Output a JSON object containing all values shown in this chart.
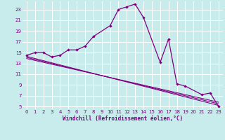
{
  "background_color": "#c8ecec",
  "grid_color": "#ffffff",
  "line_color": "#800080",
  "xlabel": "Windchill (Refroidissement éolien,°C)",
  "xlim": [
    -0.5,
    23.5
  ],
  "ylim": [
    4.5,
    24.5
  ],
  "xticks": [
    0,
    1,
    2,
    3,
    4,
    5,
    6,
    7,
    8,
    9,
    10,
    11,
    12,
    13,
    14,
    15,
    16,
    17,
    18,
    19,
    20,
    21,
    22,
    23
  ],
  "yticks": [
    5,
    7,
    9,
    11,
    13,
    15,
    17,
    19,
    21,
    23
  ],
  "main_x": [
    0,
    1,
    2,
    3,
    4,
    5,
    6,
    7,
    8,
    10,
    11,
    12,
    13,
    14,
    16,
    17,
    18,
    19,
    21,
    22,
    23
  ],
  "main_y": [
    14.5,
    15.0,
    15.0,
    14.2,
    14.5,
    15.5,
    15.5,
    16.2,
    18.0,
    20.0,
    23.0,
    23.5,
    24.0,
    21.5,
    13.2,
    17.5,
    9.2,
    8.8,
    7.2,
    7.5,
    5.0
  ],
  "line1_x": [
    0,
    23
  ],
  "line1_y": [
    14.3,
    5.2
  ],
  "line2_x": [
    0,
    23
  ],
  "line2_y": [
    14.1,
    5.5
  ],
  "line3_x": [
    0,
    23
  ],
  "line3_y": [
    13.9,
    5.8
  ],
  "linewidth": 0.9,
  "markersize": 2.2,
  "tick_fontsize": 5,
  "xlabel_fontsize": 5.5
}
